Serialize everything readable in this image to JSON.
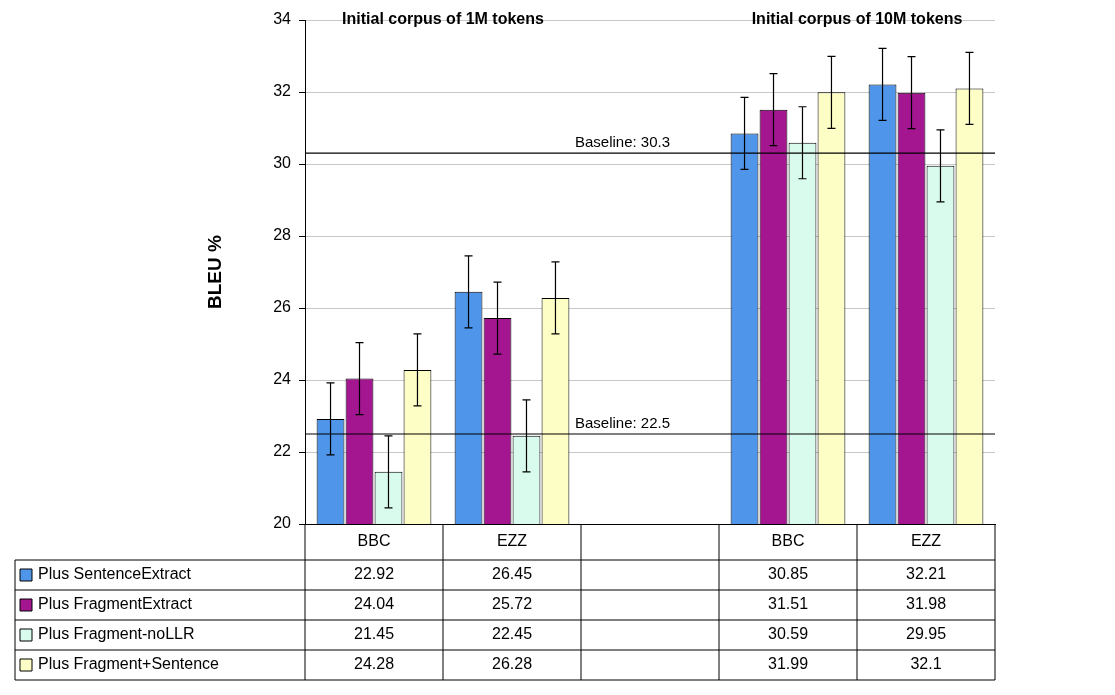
{
  "chart_data": {
    "type": "bar",
    "ylabel": "BLEU %",
    "categories": [
      "BBC",
      "EZZ",
      null,
      "BBC",
      "EZZ"
    ],
    "series": [
      {
        "name": "Plus SentenceExtract",
        "color": "#4f95ea",
        "values": [
          22.92,
          26.45,
          null,
          30.85,
          32.21
        ],
        "errors": [
          1,
          1,
          null,
          1,
          1
        ]
      },
      {
        "name": "Plus FragmentExtract",
        "color": "#a3168f",
        "values": [
          24.04,
          25.72,
          null,
          31.51,
          31.98
        ],
        "errors": [
          1,
          1,
          null,
          1,
          1
        ]
      },
      {
        "name": "Plus Fragment-noLLR",
        "color": "#d9fbee",
        "values": [
          21.45,
          22.45,
          null,
          30.59,
          29.95
        ],
        "errors": [
          1,
          1,
          null,
          1,
          1
        ]
      },
      {
        "name": "Plus Fragment+Sentence",
        "color": "#fdfdc6",
        "values": [
          24.28,
          26.28,
          null,
          31.99,
          32.1
        ],
        "errors": [
          1,
          1,
          null,
          1,
          1
        ]
      }
    ],
    "ylim": [
      20,
      34
    ],
    "yticks": [
      20,
      22,
      24,
      26,
      28,
      30,
      32,
      34
    ],
    "grid": "y",
    "legend": "bottom",
    "data_labels": true,
    "ref_lines": [
      {
        "axis": "y",
        "value": 22.5,
        "label": "Baseline: 22.5"
      },
      {
        "axis": "y",
        "value": 30.3,
        "label": "Baseline: 30.3"
      }
    ],
    "annotations": [
      "Initial corpus of 1M tokens",
      "Initial corpus of 10M tokens"
    ]
  }
}
